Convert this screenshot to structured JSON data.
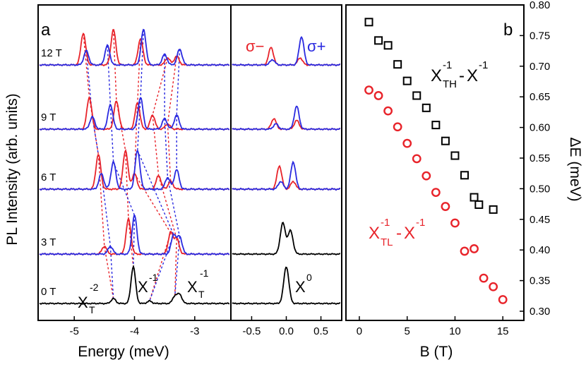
{
  "chart_data": [
    {
      "type": "line",
      "panel": "a",
      "xlabel": "Energy (meV)",
      "ylabel": "PL Intensity (arb. units)",
      "xlim": [
        -5.6,
        -2.4
      ],
      "xticks": [
        "-5",
        "-4",
        "-3"
      ],
      "field_labels": [
        "12 T",
        "9 T",
        "6 T",
        "3 T",
        "0 T"
      ],
      "peak_labels": {
        "xt2": {
          "base": "X",
          "sub": "T",
          "sup": "-2"
        },
        "xm1": {
          "base": "X",
          "sup": "-1"
        },
        "xt1": {
          "base": "X",
          "sub": "T",
          "sup": "-1"
        }
      },
      "series_colors": {
        "sigma_minus": "#e8232a",
        "sigma_plus": "#2a2ae0",
        "zero_field": "#000000"
      },
      "traces": [
        {
          "field": "12 T",
          "sigma_minus": [
            {
              "x": -4.85,
              "h": 0.9
            },
            {
              "x": -4.35,
              "h": 1.0
            },
            {
              "x": -3.9,
              "h": 0.75
            },
            {
              "x": -3.45,
              "h": 0.2
            },
            {
              "x": -3.3,
              "h": 0.25
            }
          ],
          "sigma_plus": [
            {
              "x": -4.8,
              "h": 0.4
            },
            {
              "x": -4.45,
              "h": 0.55
            },
            {
              "x": -3.85,
              "h": 1.0
            },
            {
              "x": -3.5,
              "h": 0.3
            },
            {
              "x": -3.25,
              "h": 0.45
            }
          ]
        },
        {
          "field": "9 T",
          "sigma_minus": [
            {
              "x": -4.75,
              "h": 0.9
            },
            {
              "x": -4.3,
              "h": 0.8
            },
            {
              "x": -3.95,
              "h": 0.75
            },
            {
              "x": -3.7,
              "h": 0.4
            },
            {
              "x": -3.45,
              "h": 0.15
            }
          ],
          "sigma_plus": [
            {
              "x": -4.7,
              "h": 0.35
            },
            {
              "x": -4.4,
              "h": 0.7
            },
            {
              "x": -3.9,
              "h": 0.9
            },
            {
              "x": -3.5,
              "h": 0.3
            },
            {
              "x": -3.3,
              "h": 0.4
            }
          ]
        },
        {
          "field": "6 T",
          "sigma_minus": [
            {
              "x": -4.6,
              "h": 0.9
            },
            {
              "x": -4.15,
              "h": 1.0
            },
            {
              "x": -4.0,
              "h": 0.4
            },
            {
              "x": -3.6,
              "h": 0.35
            },
            {
              "x": -3.4,
              "h": 0.2
            }
          ],
          "sigma_plus": [
            {
              "x": -4.55,
              "h": 0.4
            },
            {
              "x": -4.35,
              "h": 0.7
            },
            {
              "x": -3.95,
              "h": 1.0
            },
            {
              "x": -3.45,
              "h": 0.3
            },
            {
              "x": -3.3,
              "h": 0.5
            }
          ]
        },
        {
          "field": "3 T",
          "sigma_minus": [
            {
              "x": -4.5,
              "h": 0.2
            },
            {
              "x": -4.1,
              "h": 0.9
            },
            {
              "x": -3.4,
              "h": 0.55
            },
            {
              "x": -3.3,
              "h": 0.4
            }
          ],
          "sigma_plus": [
            {
              "x": -4.4,
              "h": 0.2
            },
            {
              "x": -4.0,
              "h": 1.0
            },
            {
              "x": -3.35,
              "h": 0.5
            },
            {
              "x": -3.25,
              "h": 0.45
            }
          ]
        },
        {
          "field": "0 T",
          "zero_field": [
            {
              "x": -4.35,
              "h": 0.12
            },
            {
              "x": -4.02,
              "h": 0.9
            },
            {
              "x": -3.75,
              "h": 0.06
            },
            {
              "x": -3.33,
              "h": 0.18
            },
            {
              "x": -3.25,
              "h": 0.22
            }
          ]
        }
      ]
    },
    {
      "type": "line",
      "panel": "a-inset",
      "xlim": [
        -0.8,
        0.8
      ],
      "xticks": [
        "-0.5",
        "0.0",
        "0.5"
      ],
      "legend": {
        "sigma_minus": "σ−",
        "sigma_plus": "σ+"
      },
      "peak_label": {
        "base": "X",
        "sup": "0"
      },
      "traces": [
        {
          "field": "12 T",
          "sigma_minus": [
            {
              "x": -0.22,
              "h": 0.5
            },
            {
              "x": 0.2,
              "h": 0.2
            }
          ],
          "sigma_plus": [
            {
              "x": -0.2,
              "h": 0.15
            },
            {
              "x": 0.22,
              "h": 0.8
            }
          ]
        },
        {
          "field": "9 T",
          "sigma_minus": [
            {
              "x": -0.18,
              "h": 0.3
            },
            {
              "x": 0.15,
              "h": 0.25
            }
          ],
          "sigma_plus": [
            {
              "x": -0.15,
              "h": 0.15
            },
            {
              "x": 0.15,
              "h": 0.65
            }
          ]
        },
        {
          "field": "6 T",
          "sigma_minus": [
            {
              "x": -0.1,
              "h": 0.6
            },
            {
              "x": 0.1,
              "h": 0.2
            }
          ],
          "sigma_plus": [
            {
              "x": -0.08,
              "h": 0.2
            },
            {
              "x": 0.1,
              "h": 0.7
            }
          ]
        },
        {
          "field": "3 T",
          "zero_field": [
            {
              "x": -0.05,
              "h": 0.8
            },
            {
              "x": 0.06,
              "h": 0.6
            }
          ]
        },
        {
          "field": "0 T",
          "zero_field": [
            {
              "x": 0.0,
              "h": 0.9
            }
          ]
        }
      ]
    },
    {
      "type": "scatter",
      "panel": "b",
      "xlabel": "B (T)",
      "ylabel": "ΔE (meV)",
      "xlim": [
        -1.4,
        17.2
      ],
      "ylim": [
        0.285,
        0.8
      ],
      "xticks": [
        0,
        5,
        10,
        15
      ],
      "yticks": [
        "0.30",
        "0.35",
        "0.40",
        "0.45",
        "0.50",
        "0.55",
        "0.60",
        "0.65",
        "0.70",
        "0.75",
        "0.80"
      ],
      "series": [
        {
          "name_parts": {
            "a": "X",
            "a_sub": "TH",
            "a_sup": "-1",
            "b": "X",
            "b_sup": "-1"
          },
          "marker": "square",
          "color": "#000000",
          "x": [
            1,
            2,
            3,
            4,
            5,
            6,
            7,
            8,
            9,
            10,
            11,
            12,
            12.5,
            14
          ],
          "y": [
            0.772,
            0.742,
            0.734,
            0.703,
            0.676,
            0.652,
            0.632,
            0.604,
            0.578,
            0.554,
            0.522,
            0.486,
            0.474,
            0.466
          ]
        },
        {
          "name_parts": {
            "a": "X",
            "a_sub": "TL",
            "a_sup": "-1",
            "b": "X",
            "b_sup": "-1"
          },
          "marker": "circle",
          "color": "#e8232a",
          "x": [
            1,
            2,
            3,
            4,
            5,
            6,
            7,
            8,
            9,
            10,
            11,
            12,
            13,
            14,
            15
          ],
          "y": [
            0.661,
            0.652,
            0.627,
            0.601,
            0.574,
            0.549,
            0.521,
            0.494,
            0.471,
            0.444,
            0.398,
            0.402,
            0.354,
            0.34,
            0.319
          ]
        }
      ]
    }
  ],
  "panel_labels": {
    "a": "a",
    "b": "b"
  }
}
